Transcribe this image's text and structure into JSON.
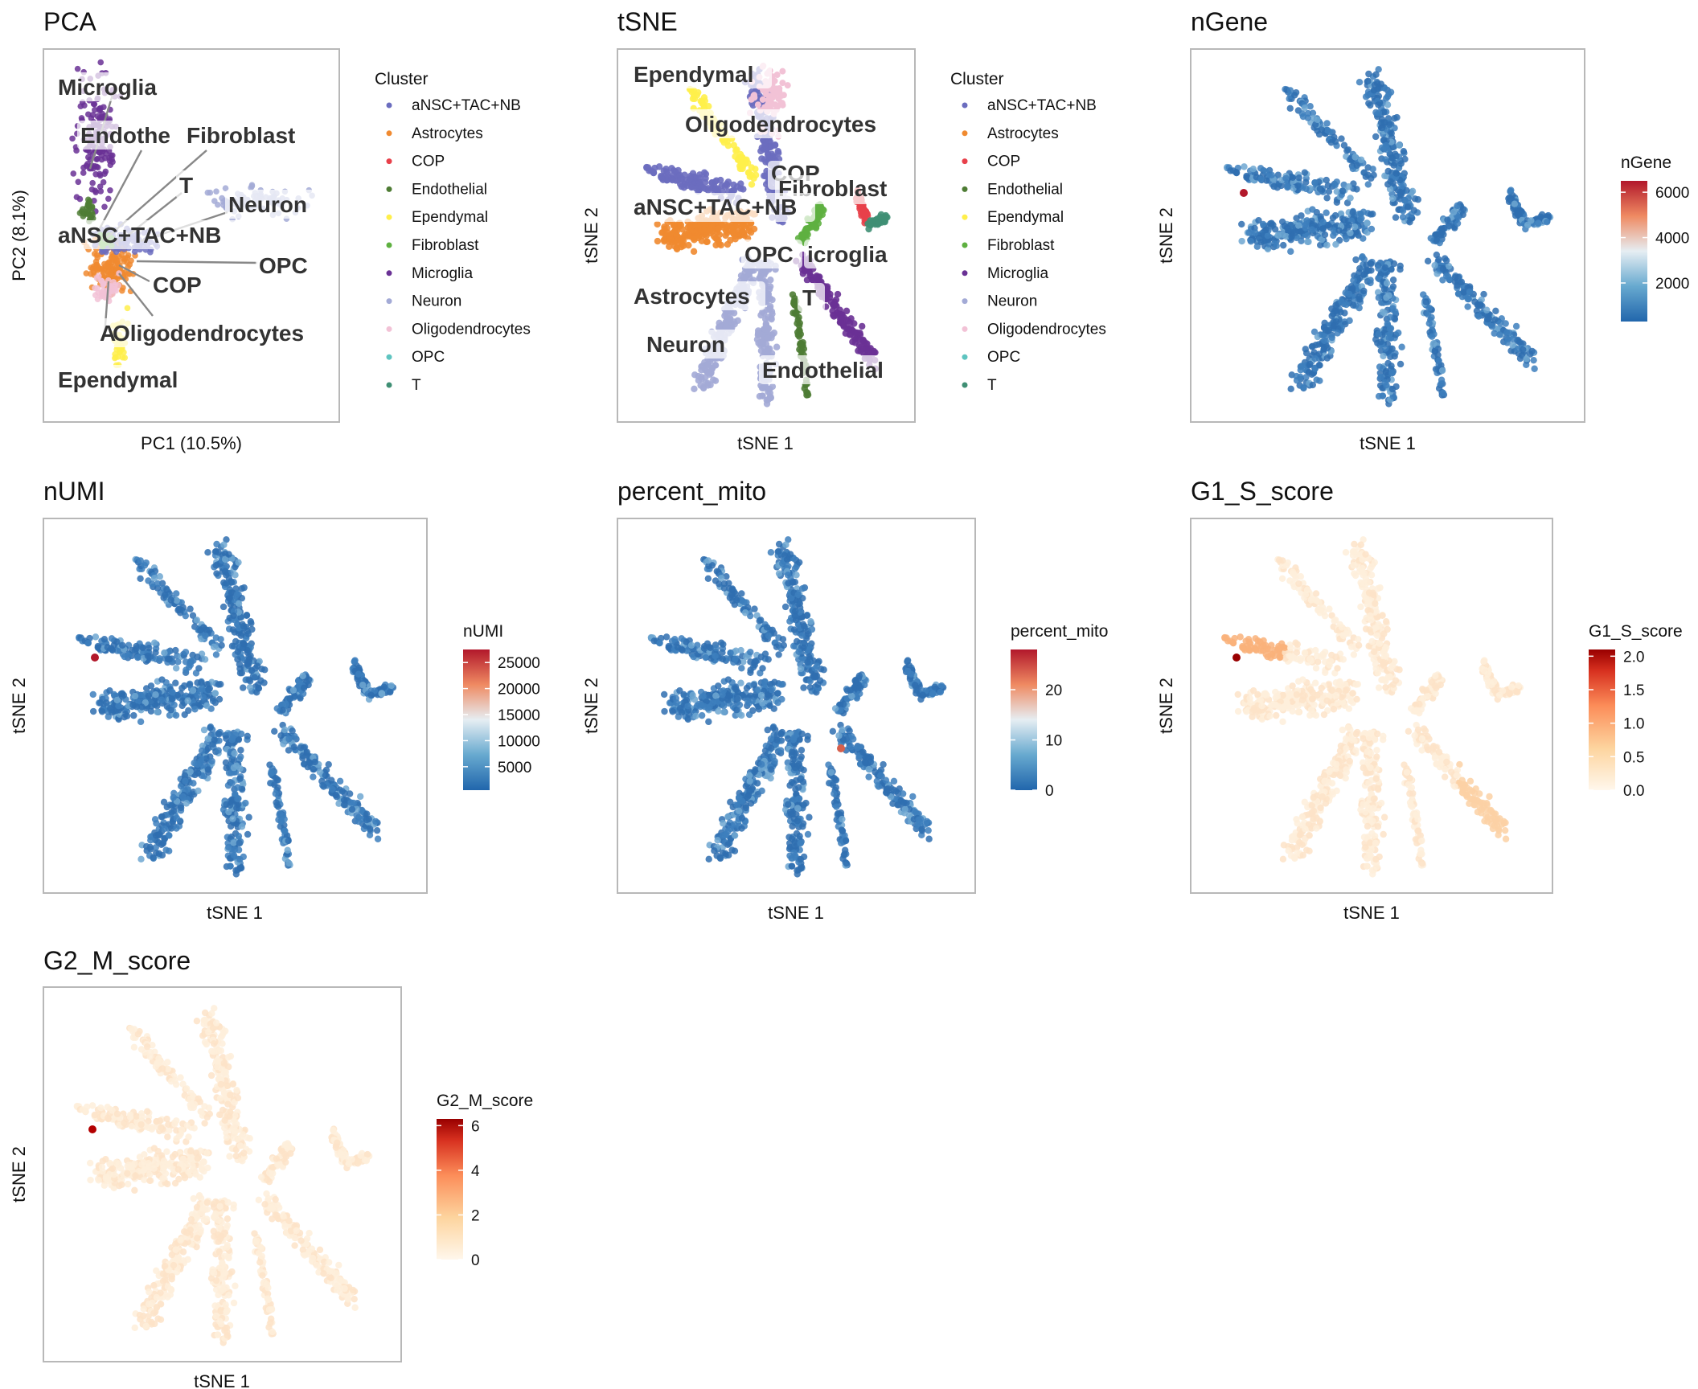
{
  "clusters": [
    "aNSC+TAC+NB",
    "Astrocytes",
    "COP",
    "Endothelial",
    "Ependymal",
    "Fibroblast",
    "Microglia",
    "Neuron",
    "Oligodendrocytes",
    "OPC",
    "T"
  ],
  "cluster_colors": [
    "#6b6dbf",
    "#f08a30",
    "#e8404a",
    "#4e7c34",
    "#ffef4a",
    "#5eb040",
    "#6a3195",
    "#a3aad6",
    "#f2c2d6",
    "#5ec4c0",
    "#3f8f74"
  ],
  "chart_data": [
    {
      "type": "scatter",
      "title": "PCA",
      "xlabel": "PC1 (10.5%)",
      "ylabel": "PC2 (8.1%)",
      "color_by": "Cluster",
      "legend_title": "Cluster",
      "legend_position": "right",
      "point_labels": [
        "Microglia",
        "Endothe",
        "Fibroblast",
        "T",
        "Neuron",
        "aNSC+TAC+NB",
        "OPC",
        "COP",
        "A",
        "Oligodendrocytes",
        "Ependymal"
      ],
      "grid": false
    },
    {
      "type": "scatter",
      "title": "tSNE",
      "xlabel": "tSNE 1",
      "ylabel": "tSNE 2",
      "color_by": "Cluster",
      "legend_title": "Cluster",
      "legend_position": "right",
      "point_labels": [
        "Ependymal",
        "Oligodendrocytes",
        "COP",
        "Fibroblast",
        "aNSC+TAC+NB",
        "OPC",
        "icroglia",
        "Astrocytes",
        "T",
        "Neuron",
        "Endothelial"
      ],
      "grid": false
    },
    {
      "type": "scatter",
      "title": "nGene",
      "xlabel": "tSNE 1",
      "ylabel": "tSNE 2",
      "color_by": "nGene",
      "legend_title": "nGene",
      "scale": "RdBu",
      "ticks": [
        2000,
        4000,
        6000
      ],
      "range": [
        300,
        6500
      ],
      "grid": false
    },
    {
      "type": "scatter",
      "title": "nUMI",
      "xlabel": "tSNE 1",
      "ylabel": "tSNE 2",
      "color_by": "nUMI",
      "legend_title": "nUMI",
      "scale": "RdBu",
      "ticks": [
        5000,
        10000,
        15000,
        20000,
        25000
      ],
      "range": [
        500,
        27500
      ],
      "grid": false
    },
    {
      "type": "scatter",
      "title": "percent_mito",
      "xlabel": "tSNE 1",
      "ylabel": "tSNE 2",
      "color_by": "percent_mito",
      "legend_title": "percent_mito",
      "scale": "RdBu",
      "ticks": [
        0,
        10,
        20
      ],
      "range": [
        0,
        28
      ],
      "grid": false
    },
    {
      "type": "scatter",
      "title": "G1_S_score",
      "xlabel": "tSNE 1",
      "ylabel": "tSNE 2",
      "color_by": "G1_S_score",
      "legend_title": "G1_S_score",
      "scale": "OrRd",
      "ticks": [
        0.0,
        0.5,
        1.0,
        1.5,
        2.0
      ],
      "tick_labels": [
        "0.0",
        "0.5",
        "1.0",
        "1.5",
        "2.0"
      ],
      "range": [
        0,
        2.1
      ],
      "grid": false
    },
    {
      "type": "scatter",
      "title": "G2_M_score",
      "xlabel": "tSNE 1",
      "ylabel": "tSNE 2",
      "color_by": "G2_M_score",
      "legend_title": "G2_M_score",
      "scale": "OrRd",
      "ticks": [
        0,
        2,
        4,
        6
      ],
      "range": [
        0,
        6.3
      ],
      "grid": false
    }
  ]
}
